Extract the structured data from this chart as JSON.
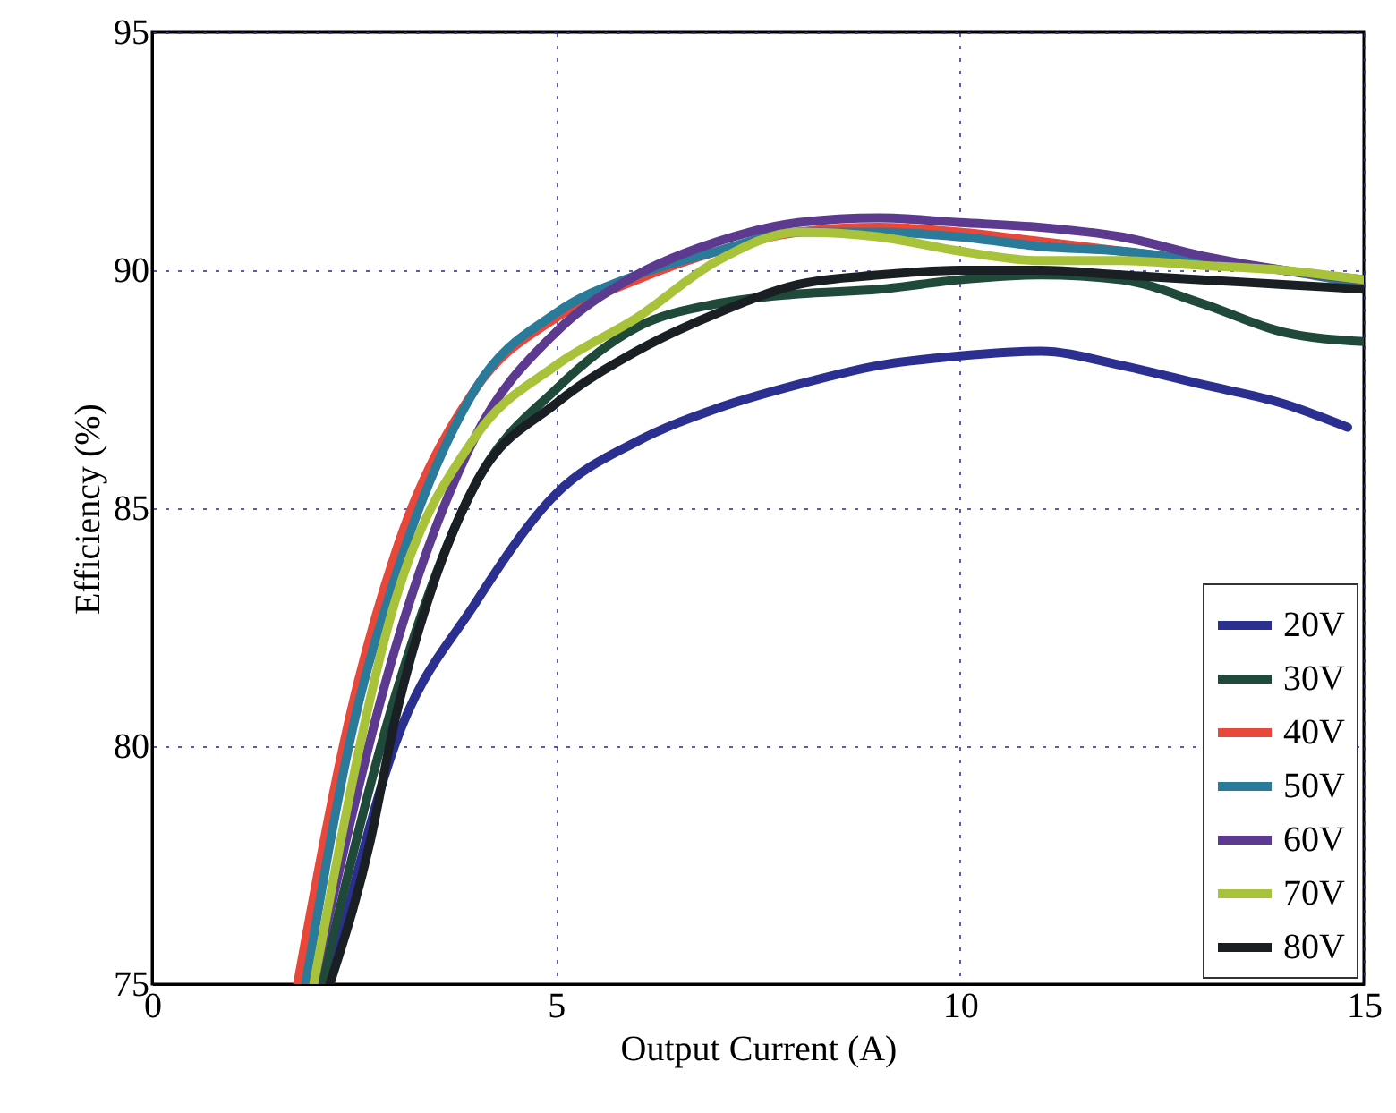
{
  "chart_data": {
    "type": "line",
    "xlabel": "Output Current (A)",
    "ylabel": "Efficiency (%)",
    "xlim": [
      0,
      15
    ],
    "ylim": [
      75,
      95
    ],
    "xticks": [
      0,
      5,
      10,
      15
    ],
    "yticks": [
      75,
      80,
      85,
      90,
      95
    ],
    "grid": true,
    "legend": "bottom right",
    "line_style": "solid",
    "marker": "none",
    "series": [
      {
        "name": "20V",
        "color": "#2b2f8f",
        "x": [
          2.2,
          3,
          4,
          5,
          6,
          7,
          8,
          9,
          10,
          11,
          12,
          13,
          14,
          14.8
        ],
        "values": [
          75,
          80,
          83,
          85.3,
          86.4,
          87.1,
          87.6,
          88,
          88.2,
          88.3,
          88,
          87.6,
          87.2,
          86.7
        ]
      },
      {
        "name": "30V",
        "color": "#1f4a3a",
        "x": [
          2.1,
          3,
          4,
          5,
          6,
          7,
          8,
          9,
          10,
          11,
          12,
          13,
          14,
          15
        ],
        "values": [
          75,
          81,
          85.5,
          87.5,
          88.8,
          89.3,
          89.5,
          89.6,
          89.8,
          89.9,
          89.8,
          89.3,
          88.7,
          88.5
        ]
      },
      {
        "name": "40V",
        "color": "#e8483a",
        "x": [
          1.8,
          2.5,
          3,
          4,
          5,
          6,
          7,
          8,
          9,
          10,
          11,
          12,
          13
        ],
        "values": [
          75,
          81,
          84,
          87.5,
          89,
          89.8,
          90.4,
          90.8,
          90.9,
          90.8,
          90.6,
          90.4,
          90.2
        ]
      },
      {
        "name": "50V",
        "color": "#2a7a9a",
        "x": [
          1.9,
          2.5,
          3,
          4,
          5,
          6,
          7,
          8,
          9,
          10,
          11,
          12,
          13,
          14,
          15
        ],
        "values": [
          75,
          80.5,
          83.5,
          87.5,
          89.1,
          89.9,
          90.4,
          90.8,
          90.8,
          90.7,
          90.5,
          90.4,
          90.2,
          90,
          89.7
        ]
      },
      {
        "name": "60V",
        "color": "#5b3a8f",
        "x": [
          2,
          3,
          4,
          5,
          6,
          7,
          8,
          9,
          10,
          11,
          12,
          13,
          14,
          15
        ],
        "values": [
          75,
          82,
          86.5,
          88.7,
          89.9,
          90.6,
          91,
          91.1,
          91,
          90.9,
          90.7,
          90.3,
          90,
          89.8
        ]
      },
      {
        "name": "70V",
        "color": "#a8c23a",
        "x": [
          2,
          3,
          4,
          5,
          6,
          7,
          8,
          9,
          10,
          11,
          12,
          13,
          14,
          15
        ],
        "values": [
          75,
          83,
          86.5,
          88,
          89,
          90.2,
          90.8,
          90.7,
          90.4,
          90.2,
          90.2,
          90.1,
          90,
          89.8
        ]
      },
      {
        "name": "80V",
        "color": "#1a1f24",
        "x": [
          2.2,
          2.7,
          3,
          3.5,
          4,
          5,
          6,
          7,
          8,
          9,
          10,
          11,
          12,
          13,
          14,
          15
        ],
        "values": [
          75,
          78,
          80.5,
          83.5,
          85.5,
          87.2,
          88.3,
          89.1,
          89.7,
          89.9,
          90,
          90,
          89.9,
          89.8,
          89.7,
          89.6
        ]
      }
    ]
  }
}
